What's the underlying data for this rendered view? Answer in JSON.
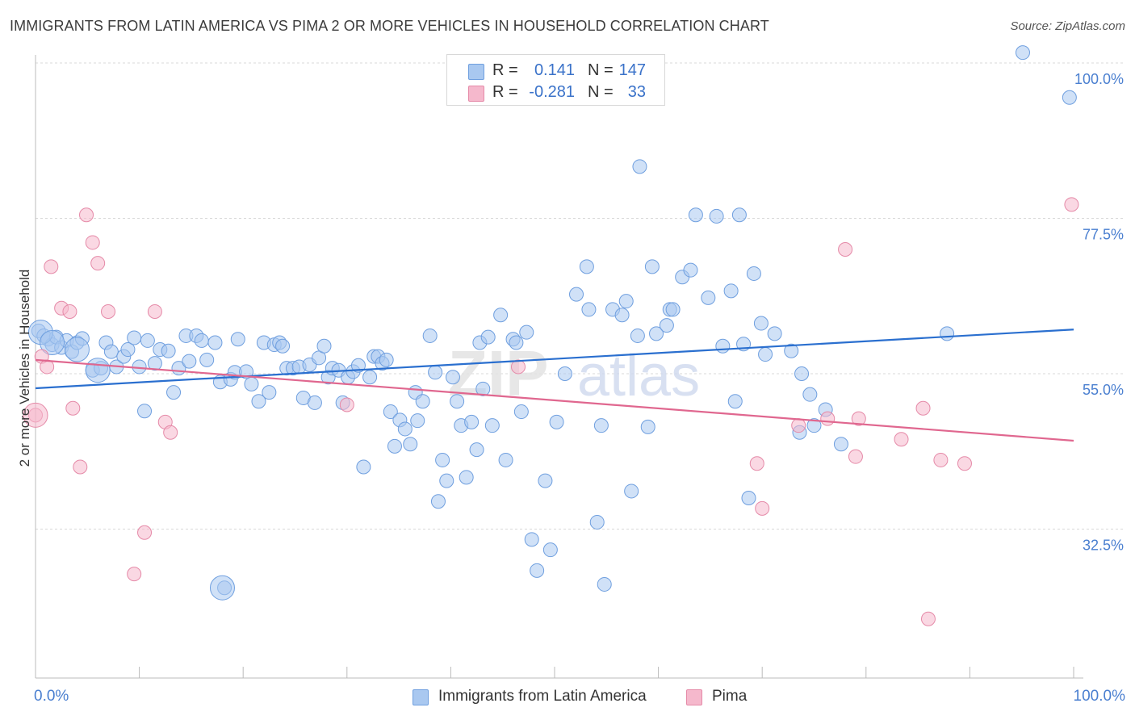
{
  "title": "IMMIGRANTS FROM LATIN AMERICA VS PIMA 2 OR MORE VEHICLES IN HOUSEHOLD CORRELATION CHART",
  "source": "Source: ZipAtlas.com",
  "legend": {
    "rows": [
      {
        "r_label": "R =",
        "r_value": "0.141",
        "n_label": "N =",
        "n_value": "147",
        "color": "#a9c8f0"
      },
      {
        "r_label": "R =",
        "r_value": "-0.281",
        "n_label": "N =",
        "n_value": "33",
        "color": "#f5b8cc"
      }
    ]
  },
  "bottom_legend": {
    "items": [
      {
        "label": "Immigrants from Latin America",
        "color": "#a9c8f0"
      },
      {
        "label": "Pima",
        "color": "#f5b8cc"
      }
    ]
  },
  "x_axis": {
    "min_label": "0.0%",
    "max_label": "100.0%"
  },
  "chart_data": {
    "type": "scatter",
    "ylabel": "2 or more Vehicles in Household",
    "xlim": [
      0,
      100
    ],
    "ylim": [
      11,
      100
    ],
    "y_ticks": [
      {
        "value": 100.0,
        "label": "100.0%"
      },
      {
        "value": 77.5,
        "label": "77.5%"
      },
      {
        "value": 55.0,
        "label": "55.0%"
      },
      {
        "value": 32.5,
        "label": "32.5%"
      }
    ],
    "grid": true,
    "legend_position": "top-center",
    "series": [
      {
        "name": "Immigrants from Latin America",
        "color": "#a9c8f0",
        "stroke": "#6f9fdf",
        "trend": {
          "x": [
            0,
            100
          ],
          "y": [
            52.9,
            61.4
          ],
          "color": "#2a6fcf"
        },
        "points": [
          [
            0.3,
            61.2
          ],
          [
            0.8,
            60.5
          ],
          [
            1.2,
            60.0
          ],
          [
            1.6,
            59.2
          ],
          [
            2.0,
            60.3
          ],
          [
            2.5,
            58.8
          ],
          [
            3.0,
            59.8
          ],
          [
            3.5,
            58.2
          ],
          [
            4.0,
            59.5
          ],
          [
            4.5,
            60.1
          ],
          [
            5.5,
            55.5
          ],
          [
            6.3,
            55.8
          ],
          [
            6.8,
            59.5
          ],
          [
            7.3,
            58.2
          ],
          [
            7.8,
            56.0
          ],
          [
            8.5,
            57.5
          ],
          [
            8.9,
            58.5
          ],
          [
            9.5,
            60.2
          ],
          [
            10.0,
            56.0
          ],
          [
            10.5,
            49.6
          ],
          [
            10.8,
            59.8
          ],
          [
            11.5,
            56.5
          ],
          [
            12.0,
            58.5
          ],
          [
            12.8,
            58.3
          ],
          [
            13.3,
            52.3
          ],
          [
            13.8,
            55.8
          ],
          [
            14.5,
            60.5
          ],
          [
            14.8,
            56.8
          ],
          [
            15.5,
            60.5
          ],
          [
            16.0,
            59.8
          ],
          [
            16.5,
            57.0
          ],
          [
            17.3,
            59.5
          ],
          [
            17.8,
            53.8
          ],
          [
            18.2,
            24.0
          ],
          [
            18.8,
            54.2
          ],
          [
            19.2,
            55.2
          ],
          [
            19.5,
            60.0
          ],
          [
            20.3,
            55.3
          ],
          [
            20.8,
            53.5
          ],
          [
            21.5,
            51.0
          ],
          [
            22.0,
            59.5
          ],
          [
            22.5,
            52.3
          ],
          [
            23.0,
            59.2
          ],
          [
            23.5,
            59.5
          ],
          [
            23.8,
            59.0
          ],
          [
            24.2,
            55.8
          ],
          [
            24.8,
            55.8
          ],
          [
            25.4,
            56.0
          ],
          [
            25.8,
            51.5
          ],
          [
            26.4,
            56.3
          ],
          [
            26.9,
            50.8
          ],
          [
            27.3,
            57.3
          ],
          [
            27.8,
            59.0
          ],
          [
            28.2,
            54.5
          ],
          [
            28.6,
            55.8
          ],
          [
            29.2,
            55.5
          ],
          [
            29.6,
            50.8
          ],
          [
            30.1,
            54.5
          ],
          [
            30.6,
            55.3
          ],
          [
            31.1,
            56.2
          ],
          [
            31.6,
            41.5
          ],
          [
            32.2,
            54.5
          ],
          [
            32.6,
            57.5
          ],
          [
            33.0,
            57.5
          ],
          [
            33.4,
            56.5
          ],
          [
            33.8,
            57.0
          ],
          [
            34.2,
            49.5
          ],
          [
            34.6,
            44.5
          ],
          [
            35.1,
            48.3
          ],
          [
            35.6,
            47.0
          ],
          [
            36.1,
            44.8
          ],
          [
            36.6,
            52.3
          ],
          [
            36.8,
            48.2
          ],
          [
            37.3,
            51.0
          ],
          [
            38.0,
            60.5
          ],
          [
            38.5,
            55.2
          ],
          [
            38.8,
            36.5
          ],
          [
            39.2,
            42.5
          ],
          [
            39.6,
            39.5
          ],
          [
            40.2,
            54.5
          ],
          [
            40.6,
            51.0
          ],
          [
            41.0,
            47.5
          ],
          [
            41.5,
            40.0
          ],
          [
            42.0,
            48.0
          ],
          [
            42.5,
            44.0
          ],
          [
            42.8,
            59.5
          ],
          [
            43.1,
            52.8
          ],
          [
            43.6,
            60.3
          ],
          [
            44.0,
            47.5
          ],
          [
            44.8,
            63.5
          ],
          [
            45.3,
            42.5
          ],
          [
            46.0,
            60.0
          ],
          [
            46.3,
            59.5
          ],
          [
            46.8,
            49.5
          ],
          [
            47.3,
            61.0
          ],
          [
            47.8,
            31.0
          ],
          [
            48.3,
            26.5
          ],
          [
            49.1,
            39.5
          ],
          [
            49.6,
            29.5
          ],
          [
            50.2,
            48.0
          ],
          [
            51.0,
            55.0
          ],
          [
            52.1,
            66.5
          ],
          [
            53.1,
            70.5
          ],
          [
            53.3,
            64.3
          ],
          [
            54.1,
            33.5
          ],
          [
            54.5,
            47.5
          ],
          [
            54.8,
            24.5
          ],
          [
            55.6,
            64.3
          ],
          [
            56.5,
            63.5
          ],
          [
            56.9,
            65.5
          ],
          [
            57.4,
            38.0
          ],
          [
            58.0,
            60.5
          ],
          [
            58.2,
            85.0
          ],
          [
            59.0,
            47.3
          ],
          [
            59.4,
            70.5
          ],
          [
            59.8,
            60.8
          ],
          [
            60.8,
            62.0
          ],
          [
            61.1,
            64.3
          ],
          [
            61.4,
            64.3
          ],
          [
            62.3,
            69.0
          ],
          [
            63.1,
            70.0
          ],
          [
            63.6,
            78.0
          ],
          [
            64.8,
            66.0
          ],
          [
            65.6,
            77.8
          ],
          [
            66.2,
            59.0
          ],
          [
            67.0,
            67.0
          ],
          [
            67.4,
            51.0
          ],
          [
            67.8,
            78.0
          ],
          [
            68.2,
            59.3
          ],
          [
            68.7,
            37.0
          ],
          [
            69.2,
            69.5
          ],
          [
            69.9,
            62.3
          ],
          [
            70.3,
            57.8
          ],
          [
            71.2,
            60.8
          ],
          [
            72.8,
            58.3
          ],
          [
            73.6,
            46.5
          ],
          [
            73.8,
            55.0
          ],
          [
            74.6,
            52.0
          ],
          [
            75.0,
            47.5
          ],
          [
            76.1,
            49.8
          ],
          [
            77.6,
            44.8
          ],
          [
            87.8,
            60.8
          ],
          [
            95.1,
            101.5
          ],
          [
            99.6,
            95.0
          ]
        ],
        "large_points": [
          [
            0.5,
            61.0
          ],
          [
            1.6,
            59.5
          ],
          [
            4.0,
            58.5
          ],
          [
            6.0,
            55.5
          ],
          [
            18.0,
            24.0
          ]
        ]
      },
      {
        "name": "Pima",
        "color": "#f5b8cc",
        "stroke": "#e58aa8",
        "trend": {
          "x": [
            0,
            100
          ],
          "y": [
            57.0,
            45.3
          ],
          "color": "#e0678f"
        },
        "points": [
          [
            0.0,
            49.0
          ],
          [
            0.6,
            57.5
          ],
          [
            1.1,
            56.0
          ],
          [
            1.5,
            70.5
          ],
          [
            2.5,
            64.5
          ],
          [
            3.3,
            64.0
          ],
          [
            3.6,
            50.0
          ],
          [
            4.3,
            41.5
          ],
          [
            4.9,
            78.0
          ],
          [
            5.5,
            74.0
          ],
          [
            6.0,
            71.0
          ],
          [
            7.0,
            64.0
          ],
          [
            9.5,
            26.0
          ],
          [
            10.5,
            32.0
          ],
          [
            11.5,
            64.0
          ],
          [
            12.5,
            48.0
          ],
          [
            13.0,
            46.5
          ],
          [
            30.0,
            50.5
          ],
          [
            46.5,
            56.0
          ],
          [
            69.5,
            42.0
          ],
          [
            70.0,
            35.5
          ],
          [
            73.5,
            47.5
          ],
          [
            76.3,
            48.5
          ],
          [
            78.0,
            73.0
          ],
          [
            79.0,
            43.0
          ],
          [
            79.3,
            48.5
          ],
          [
            83.4,
            45.5
          ],
          [
            85.5,
            50.0
          ],
          [
            86.0,
            19.5
          ],
          [
            87.2,
            42.5
          ],
          [
            89.5,
            42.0
          ],
          [
            99.8,
            79.5
          ]
        ],
        "large_points": [
          [
            0.0,
            49.0
          ]
        ]
      }
    ]
  }
}
